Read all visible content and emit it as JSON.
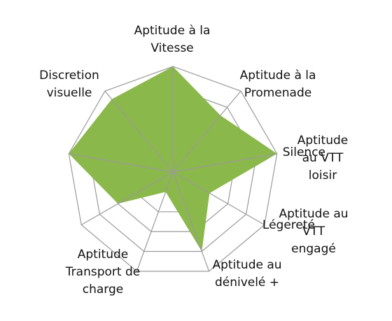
{
  "chart_data": {
    "type": "radar",
    "categories": [
      "Aptitude à la\nVitesse",
      "Aptitude à la\nPromenade",
      "Aptitude au VTT\nloisir",
      "Aptitude au VTT\nengagé",
      "Aptitude au\ndénivelé +",
      "Aptitude\nTransport de\ncharge",
      "Légereté",
      "Silence",
      "Discretion\nvisuelle"
    ],
    "series": [
      {
        "values": [
          10,
          7,
          10,
          4,
          8,
          2,
          6,
          10,
          9
        ]
      }
    ],
    "rlim": [
      0,
      10
    ],
    "rings": 5,
    "fill_color": "#8AB84B",
    "grid_color": "#9A9A9A",
    "legend": "none"
  }
}
